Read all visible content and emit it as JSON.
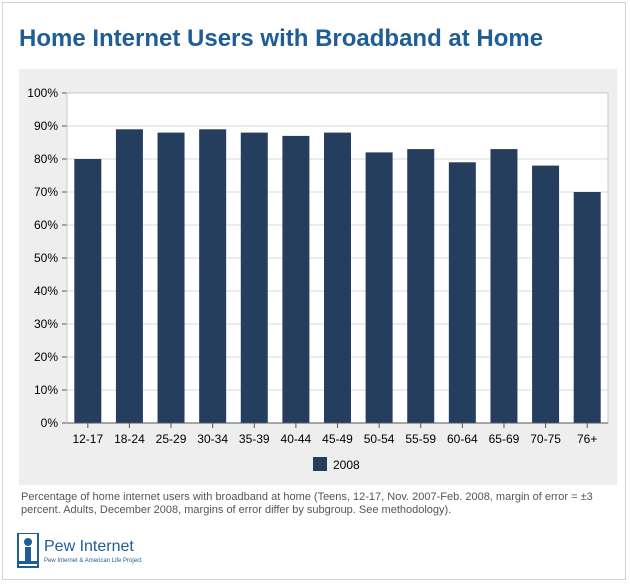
{
  "page": {
    "footnote": "Percentage of home internet users with broadband at home (Teens, 12-17, Nov. 2007-Feb. 2008, margin of error = ±3 percent. Adults, December 2008, margins of error differ by subgroup. See methodology).",
    "logo": {
      "name": "Pew Internet",
      "tagline": "Pew Internet & American Life Project"
    }
  },
  "chart_data": {
    "type": "bar",
    "title": "Home Internet Users with Broadband at Home",
    "xlabel": "",
    "ylabel": "",
    "categories": [
      "12-17",
      "18-24",
      "25-29",
      "30-34",
      "35-39",
      "40-44",
      "45-49",
      "50-54",
      "55-59",
      "60-64",
      "65-69",
      "70-75",
      "76+"
    ],
    "series": [
      {
        "name": "2008",
        "values": [
          80,
          89,
          88,
          89,
          88,
          87,
          88,
          82,
          83,
          79,
          83,
          78,
          70
        ],
        "color": "#263e5e"
      }
    ],
    "ylim": [
      0,
      100
    ],
    "yticks": [
      "0%",
      "10%",
      "20%",
      "30%",
      "40%",
      "50%",
      "60%",
      "70%",
      "80%",
      "90%",
      "100%"
    ],
    "grid": true,
    "legend": "bottom-center"
  }
}
